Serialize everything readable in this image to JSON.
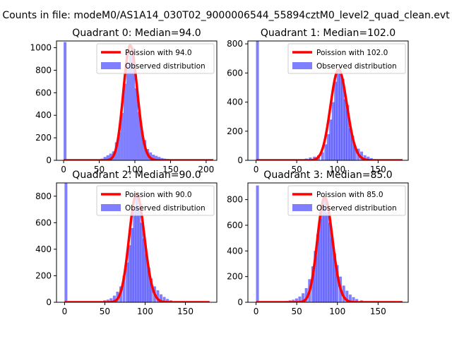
{
  "suptitle": "Counts in file: modeM0/AS1A14_030T02_9000006544_55894cztM0_level2_quad_clean.evt",
  "colors": {
    "hist": "#0000ff",
    "poisson": "#ff0000"
  },
  "chart_data": [
    {
      "type": "histogram_with_curve",
      "title": "Quadrant 0: Median=94.0",
      "median": 94.0,
      "legend": [
        "Poission with 94.0",
        "Observed distribution"
      ],
      "legend_position": "upper right",
      "xlim": [
        -10,
        215
      ],
      "ylim": [
        0,
        1060
      ],
      "xticks": [
        0,
        50,
        100,
        150,
        200
      ],
      "yticks": [
        0,
        200,
        400,
        600,
        800,
        1000
      ],
      "bin_width": 4,
      "bins": [
        [
          0,
          1050
        ],
        [
          52,
          15
        ],
        [
          56,
          30
        ],
        [
          60,
          45
        ],
        [
          64,
          60
        ],
        [
          68,
          80
        ],
        [
          72,
          160
        ],
        [
          76,
          250
        ],
        [
          80,
          420
        ],
        [
          84,
          680
        ],
        [
          88,
          850
        ],
        [
          92,
          930
        ],
        [
          96,
          1000
        ],
        [
          100,
          640
        ],
        [
          104,
          430
        ],
        [
          108,
          260
        ],
        [
          112,
          180
        ],
        [
          116,
          100
        ],
        [
          120,
          70
        ],
        [
          124,
          50
        ],
        [
          128,
          40
        ],
        [
          132,
          30
        ],
        [
          136,
          20
        ],
        [
          140,
          15
        ],
        [
          144,
          12
        ],
        [
          148,
          8
        ],
        [
          152,
          5
        ],
        [
          156,
          3
        ]
      ],
      "curve_x": [
        0,
        210
      ]
    },
    {
      "type": "histogram_with_curve",
      "title": "Quadrant 1: Median=102.0",
      "median": 102.0,
      "legend": [
        "Poission with 102.0",
        "Observed distribution"
      ],
      "legend_position": "upper right",
      "xlim": [
        -10,
        187
      ],
      "ylim": [
        0,
        820
      ],
      "xticks": [
        0,
        50,
        100,
        150
      ],
      "yticks": [
        0,
        200,
        400,
        600,
        800
      ],
      "bin_width": 3.5,
      "bins": [
        [
          0,
          820
        ],
        [
          55,
          5
        ],
        [
          60,
          12
        ],
        [
          65,
          20
        ],
        [
          70,
          25
        ],
        [
          75,
          35
        ],
        [
          80,
          55
        ],
        [
          84,
          110
        ],
        [
          87,
          180
        ],
        [
          90,
          280
        ],
        [
          93,
          400
        ],
        [
          96,
          540
        ],
        [
          99,
          610
        ],
        [
          102,
          600
        ],
        [
          105,
          560
        ],
        [
          108,
          420
        ],
        [
          111,
          380
        ],
        [
          114,
          220
        ],
        [
          117,
          170
        ],
        [
          120,
          100
        ],
        [
          124,
          80
        ],
        [
          128,
          60
        ],
        [
          132,
          35
        ],
        [
          136,
          25
        ],
        [
          140,
          15
        ],
        [
          144,
          8
        ],
        [
          148,
          4
        ]
      ],
      "curve_x": [
        0,
        180
      ]
    },
    {
      "type": "histogram_with_curve",
      "title": "Quadrant 2: Median=90.0",
      "median": 90.0,
      "legend": [
        "Poission with 90.0",
        "Observed distribution"
      ],
      "legend_position": "upper right",
      "xlim": [
        -10,
        189
      ],
      "ylim": [
        0,
        900
      ],
      "xticks": [
        0,
        50,
        100,
        150
      ],
      "yticks": [
        0,
        200,
        400,
        600,
        800
      ],
      "bin_width": 3.5,
      "bins": [
        [
          0,
          900
        ],
        [
          44,
          8
        ],
        [
          48,
          15
        ],
        [
          52,
          20
        ],
        [
          56,
          30
        ],
        [
          60,
          50
        ],
        [
          64,
          80
        ],
        [
          68,
          120
        ],
        [
          72,
          200
        ],
        [
          76,
          300
        ],
        [
          79,
          430
        ],
        [
          82,
          560
        ],
        [
          85,
          700
        ],
        [
          88,
          800
        ],
        [
          91,
          720
        ],
        [
          94,
          600
        ],
        [
          97,
          480
        ],
        [
          100,
          360
        ],
        [
          103,
          260
        ],
        [
          106,
          180
        ],
        [
          110,
          120
        ],
        [
          114,
          90
        ],
        [
          118,
          60
        ],
        [
          122,
          40
        ],
        [
          126,
          25
        ],
        [
          130,
          15
        ],
        [
          136,
          8
        ],
        [
          142,
          4
        ]
      ],
      "curve_x": [
        0,
        180
      ]
    },
    {
      "type": "histogram_with_curve",
      "title": "Quadrant 3: Median=85.0",
      "median": 85.0,
      "legend": [
        "Poission with 85.0",
        "Observed distribution"
      ],
      "legend_position": "upper right",
      "xlim": [
        -10,
        187
      ],
      "ylim": [
        0,
        930
      ],
      "xticks": [
        0,
        50,
        100,
        150
      ],
      "yticks": [
        0,
        200,
        400,
        600,
        800
      ],
      "bin_width": 3.5,
      "bins": [
        [
          0,
          910
        ],
        [
          36,
          10
        ],
        [
          40,
          15
        ],
        [
          44,
          20
        ],
        [
          48,
          30
        ],
        [
          52,
          45
        ],
        [
          56,
          70
        ],
        [
          60,
          110
        ],
        [
          64,
          180
        ],
        [
          68,
          280
        ],
        [
          71,
          400
        ],
        [
          74,
          530
        ],
        [
          77,
          650
        ],
        [
          80,
          760
        ],
        [
          83,
          800
        ],
        [
          86,
          700
        ],
        [
          89,
          620
        ],
        [
          92,
          500
        ],
        [
          95,
          380
        ],
        [
          98,
          290
        ],
        [
          102,
          200
        ],
        [
          106,
          130
        ],
        [
          110,
          90
        ],
        [
          114,
          60
        ],
        [
          118,
          40
        ],
        [
          122,
          25
        ],
        [
          128,
          15
        ],
        [
          134,
          8
        ]
      ],
      "curve_x": [
        0,
        180
      ]
    }
  ]
}
